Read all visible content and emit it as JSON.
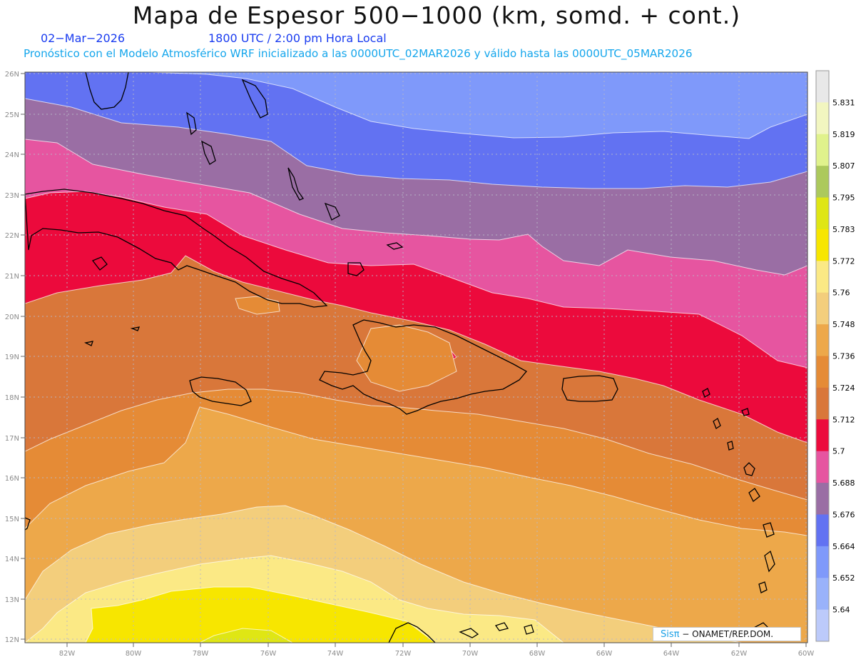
{
  "header": {
    "title": "Mapa de Espesor 500−1000 (km, somd. + cont.)",
    "date": "02−Mar−2026",
    "time": "1800 UTC / 2:00 pm Hora Local",
    "forecast": "Pronóstico con el Modelo Atmosférico WRF inicializado a las 0000UTC_02MAR2026 y válido hasta las  0000UTC_05MAR2026"
  },
  "axes": {
    "lat_labels": [
      "26N",
      "25N",
      "24N",
      "23N",
      "22N",
      "21N",
      "20N",
      "19N",
      "18N",
      "17N",
      "16N",
      "15N",
      "14N",
      "13N",
      "12N"
    ],
    "lon_labels": [
      "82W",
      "80W",
      "78W",
      "76W",
      "74W",
      "72W",
      "70W",
      "68W",
      "66W",
      "64W",
      "62W",
      "60W"
    ]
  },
  "colorbar": {
    "labels": [
      "5.831",
      "5.819",
      "5.807",
      "5.795",
      "5.783",
      "5.772",
      "5.76",
      "5.748",
      "5.736",
      "5.724",
      "5.712",
      "5.7",
      "5.688",
      "5.676",
      "5.664",
      "5.652",
      "5.64"
    ],
    "colors": [
      "#e8e8e8",
      "#f2f6c0",
      "#e0f28c",
      "#acc95c",
      "#dfe614",
      "#f7e600",
      "#fbe985",
      "#f3ce7c",
      "#eda84a",
      "#e58b36",
      "#d9773a",
      "#ec0a3c",
      "#e655a0",
      "#9a6ea4",
      "#6272f2",
      "#7f99fa",
      "#99b2fa",
      "#bccafa"
    ]
  },
  "fields": {
    "colors": {
      "c5652": "#7f99fa",
      "c5664": "#6272f2",
      "c5676": "#9a6ea4",
      "c5688": "#e655a0",
      "c5700": "#ec0a3c",
      "c5712": "#d9773a",
      "c5724": "#e58b36",
      "c5736": "#eda84a",
      "c5748": "#f3ce7c",
      "c5760": "#fbe985",
      "c5772": "#f7e600",
      "c5783": "#dfe614"
    }
  },
  "credit": {
    "brand": "Sisπ",
    "org": "− ONAMET/REP.DOM."
  }
}
